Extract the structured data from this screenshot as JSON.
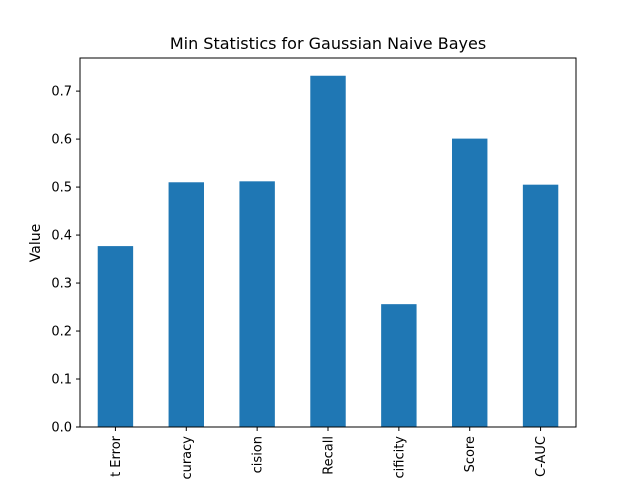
{
  "chart_data": {
    "type": "bar",
    "title": "Min Statistics for Gaussian Naive Bayes",
    "xlabel": "",
    "ylabel": "Value",
    "categories": [
      "t Error",
      "curacy",
      "cision",
      "Recall",
      "cificity",
      "Score",
      "C-AUC"
    ],
    "values": [
      0.377,
      0.51,
      0.512,
      0.732,
      0.256,
      0.601,
      0.505
    ],
    "ylim": [
      0,
      0.769
    ],
    "yticks": [
      0.0,
      0.1,
      0.2,
      0.3,
      0.4,
      0.5,
      0.6,
      0.7
    ],
    "ytick_labels": [
      "0.0",
      "0.1",
      "0.2",
      "0.3",
      "0.4",
      "0.5",
      "0.6",
      "0.7"
    ],
    "bar_color": "#1f77b4",
    "grid": false,
    "legend": "none"
  }
}
